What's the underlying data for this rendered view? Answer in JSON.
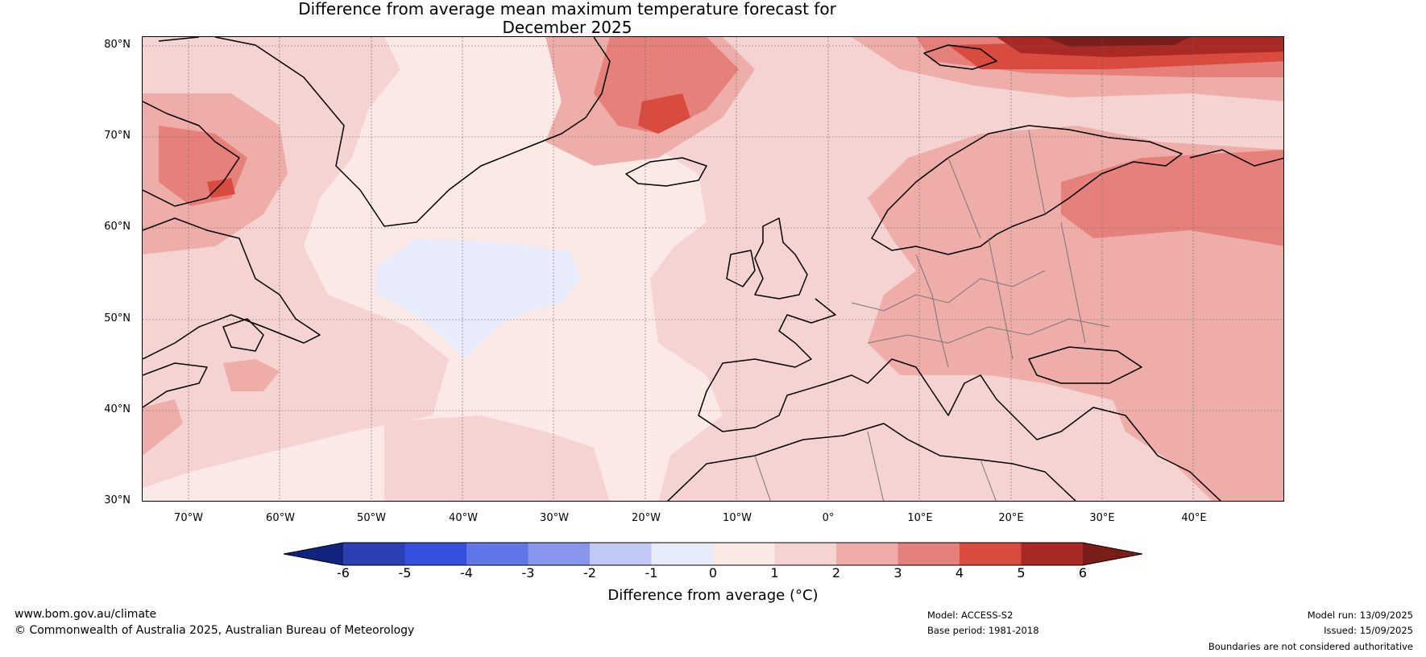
{
  "title": {
    "line1": "Difference from average mean maximum temperature forecast for",
    "line2": "December 2025"
  },
  "map": {
    "region": "North Atlantic and Europe",
    "lat_labels": [
      "80°N",
      "70°N",
      "60°N",
      "50°N",
      "40°N",
      "30°N"
    ],
    "lon_labels": [
      "70°W",
      "60°W",
      "50°W",
      "40°W",
      "30°W",
      "20°W",
      "10°W",
      "0°",
      "10°E",
      "20°E",
      "30°E",
      "40°E"
    ],
    "extent": {
      "lon_min": -75,
      "lon_max": 50,
      "lat_min": 30,
      "lat_max": 81
    }
  },
  "colorbar": {
    "label": "Difference from average (°C)",
    "ticks": [
      "-6",
      "-5",
      "-4",
      "-3",
      "-2",
      "-1",
      "0",
      "1",
      "2",
      "3",
      "4",
      "5",
      "6"
    ],
    "colors": [
      "#12237e",
      "#2a3fb2",
      "#3550dd",
      "#5f76e6",
      "#8798ec",
      "#bfc9f3",
      "#e8ebfa",
      "#fbe9e6",
      "#f5d3d0",
      "#eeada9",
      "#e6807a",
      "#d94a3f",
      "#a92a25",
      "#7a1c17"
    ]
  },
  "footer": {
    "website": "www.bom.gov.au/climate",
    "copyright": "© Commonwealth of Australia 2025, Australian Bureau of Meteorology",
    "model": "Model: ACCESS-S2",
    "base_period": "Base period: 1981-2018",
    "model_run": "Model run: 13/09/2025",
    "issued": "Issued: 15/09/2025",
    "disclaimer": "Boundaries are not considered authoritative"
  }
}
